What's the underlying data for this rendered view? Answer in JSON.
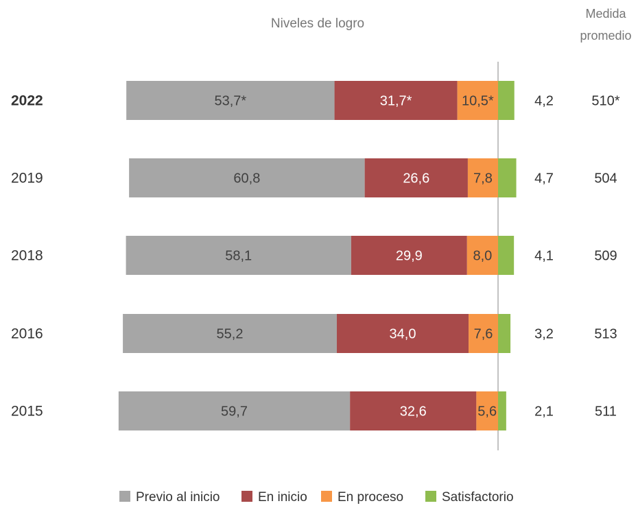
{
  "chart_data": {
    "type": "bar",
    "orientation": "horizontal",
    "stacked": true,
    "title": "Niveles de logro",
    "average_header": [
      "Medida",
      "promedio"
    ],
    "categories": [
      "2022",
      "2019",
      "2018",
      "2016",
      "2015"
    ],
    "category_bold": [
      true,
      false,
      false,
      false,
      false
    ],
    "series": [
      {
        "name": "Previo al inicio",
        "color": "#a6a6a6",
        "values": [
          53.7,
          60.8,
          58.1,
          55.2,
          59.7
        ],
        "labels": [
          "53,7*",
          "60,8",
          "58,1",
          "55,2",
          "59,7"
        ],
        "label_color": "#404040"
      },
      {
        "name": "En inicio",
        "color": "#a84a4a",
        "values": [
          31.7,
          26.6,
          29.9,
          34.0,
          32.6
        ],
        "labels": [
          "31,7*",
          "26,6",
          "29,9",
          "34,0",
          "32,6"
        ],
        "label_color": "#ffffff"
      },
      {
        "name": "En proceso",
        "color": "#f79646",
        "values": [
          10.5,
          7.8,
          8.0,
          7.6,
          5.6
        ],
        "labels": [
          "10,5*",
          "7,8",
          "8,0",
          "7,6",
          "5,6"
        ],
        "label_color": "#404040"
      },
      {
        "name": "Satisfactorio",
        "color": "#8fbc4f",
        "values": [
          4.2,
          4.7,
          4.1,
          3.2,
          2.1
        ],
        "labels": [
          "4,2",
          "4,7",
          "4,1",
          "3,2",
          "2,1"
        ],
        "label_color": "#333333"
      }
    ],
    "average_scores": [
      "510*",
      "504",
      "509",
      "513",
      "511"
    ],
    "legend": "bottom",
    "grid": false
  }
}
